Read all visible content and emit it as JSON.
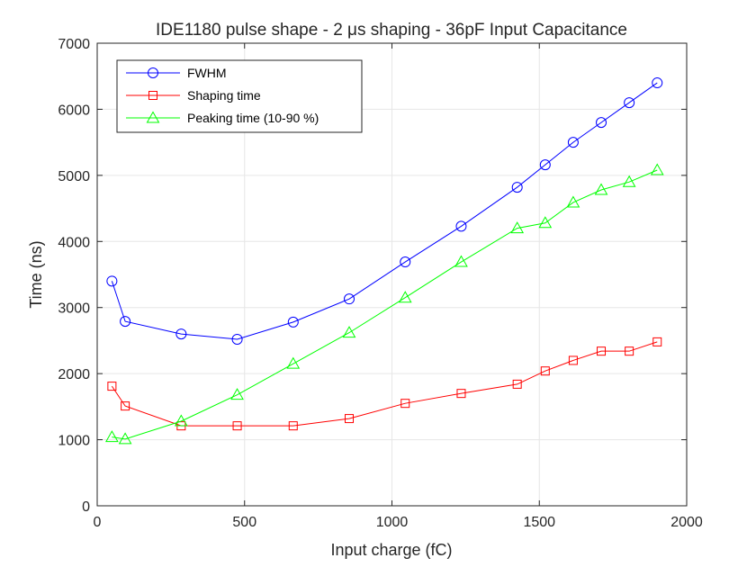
{
  "chart_data": {
    "type": "line",
    "title": "IDE1180 pulse shape - 2 μs shaping - 36pF Input Capacitance",
    "xlabel": "Input charge (fC)",
    "ylabel": "Time (ns)",
    "xlim": [
      0,
      2000
    ],
    "ylim": [
      0,
      7000
    ],
    "xticks": [
      0,
      500,
      1000,
      1500,
      2000
    ],
    "yticks": [
      0,
      1000,
      2000,
      3000,
      4000,
      5000,
      6000,
      7000
    ],
    "grid": true,
    "legend_position": "top-left",
    "series": [
      {
        "name": "FWHM",
        "color": "#0000ff",
        "marker": "circle",
        "x": [
          50,
          95,
          285,
          475,
          665,
          855,
          1045,
          1235,
          1425,
          1520,
          1615,
          1710,
          1805,
          1900
        ],
        "values": [
          3400,
          2790,
          2600,
          2520,
          2780,
          3130,
          3690,
          4230,
          4820,
          5160,
          5500,
          5800,
          6100,
          6400
        ]
      },
      {
        "name": "Shaping time",
        "color": "#ff0000",
        "marker": "square",
        "x": [
          50,
          95,
          285,
          475,
          665,
          855,
          1045,
          1235,
          1425,
          1520,
          1615,
          1710,
          1805,
          1900
        ],
        "values": [
          1810,
          1510,
          1210,
          1210,
          1210,
          1320,
          1550,
          1700,
          1840,
          2040,
          2200,
          2340,
          2340,
          2480
        ]
      },
      {
        "name": "Peaking time (10-90 %)",
        "color": "#00ff00",
        "marker": "triangle",
        "x": [
          50,
          95,
          285,
          475,
          665,
          855,
          1045,
          1235,
          1425,
          1520,
          1615,
          1710,
          1805,
          1900
        ],
        "values": [
          1040,
          1010,
          1280,
          1680,
          2150,
          2620,
          3150,
          3690,
          4200,
          4280,
          4590,
          4780,
          4900,
          5080
        ]
      }
    ]
  }
}
